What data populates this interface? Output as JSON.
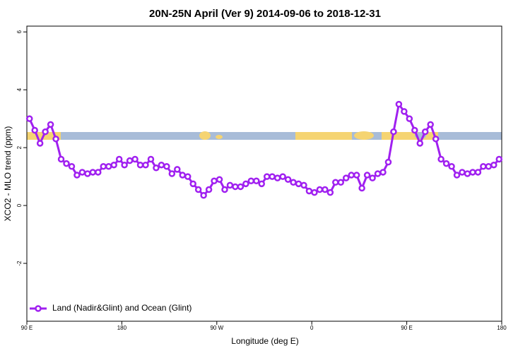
{
  "chart_data": {
    "type": "line",
    "title": "20N-25N April (Ver 9)   2014-09-06 to 2018-12-31",
    "xlabel": "Longitude (deg E)",
    "ylabel": "XCO2 - MLO trend (ppm)",
    "xlim": [
      90,
      540
    ],
    "xticks": [
      {
        "value": 90,
        "label": "90 E"
      },
      180,
      {
        "value": 270,
        "label": "90 W"
      },
      {
        "value": 360,
        "label": "0"
      },
      {
        "value": 450,
        "label": "90 E"
      },
      {
        "value": 540,
        "label": "180"
      }
    ],
    "ylim": [
      -4,
      6.2
    ],
    "yticks": [
      6,
      4,
      2,
      0,
      -2
    ],
    "legend": "bottom-left",
    "x": [
      92.5,
      97.5,
      102.5,
      107.5,
      112.5,
      117.5,
      122.5,
      127.5,
      132.5,
      137.5,
      142.5,
      147.5,
      152.5,
      157.5,
      162.5,
      167.5,
      172.5,
      177.5,
      182.5,
      187.5,
      192.5,
      197.5,
      202.5,
      207.5,
      212.5,
      217.5,
      222.5,
      227.5,
      232.5,
      237.5,
      242.5,
      247.5,
      252.5,
      257.5,
      262.5,
      267.5,
      272.5,
      277.5,
      282.5,
      287.5,
      292.5,
      297.5,
      302.5,
      307.5,
      312.5,
      317.5,
      322.5,
      327.5,
      332.5,
      337.5,
      342.5,
      347.5,
      352.5,
      357.5,
      362.5,
      367.5,
      372.5,
      377.5,
      382.5,
      387.5,
      392.5,
      397.5,
      402.5,
      407.5,
      412.5,
      417.5,
      422.5,
      427.5,
      432.5,
      437.5,
      442.5,
      447.5,
      452.5,
      457.5,
      462.5,
      467.5,
      472.5,
      477.5,
      482.5,
      487.5,
      492.5,
      497.5,
      502.5,
      507.5,
      512.5,
      517.5,
      522.5,
      527.5,
      532.5,
      537.5
    ],
    "series": [
      {
        "name": "Land (Nadir&Glint) and Ocean (Glint)",
        "color": "#a020f0",
        "values": [
          3.0,
          2.6,
          2.15,
          2.55,
          2.8,
          2.3,
          1.6,
          1.45,
          1.35,
          1.05,
          1.15,
          1.1,
          1.15,
          1.15,
          1.35,
          1.35,
          1.4,
          1.6,
          1.4,
          1.55,
          1.6,
          1.4,
          1.4,
          1.6,
          1.3,
          1.4,
          1.35,
          1.1,
          1.25,
          1.05,
          1.0,
          0.75,
          0.55,
          0.35,
          0.55,
          0.85,
          0.9,
          0.55,
          0.7,
          0.65,
          0.65,
          0.75,
          0.85,
          0.85,
          0.75,
          1.0,
          1.0,
          0.95,
          1.0,
          0.9,
          0.8,
          0.75,
          0.7,
          0.5,
          0.45,
          0.55,
          0.55,
          0.45,
          0.8,
          0.8,
          0.95,
          1.05,
          1.05,
          0.6,
          1.05,
          0.95,
          1.1,
          1.15,
          1.5,
          2.55,
          3.5,
          3.25,
          3.0,
          2.6,
          2.15,
          2.55,
          2.8,
          2.3,
          1.6,
          1.45,
          1.35,
          1.05,
          1.15,
          1.1,
          1.15,
          1.15,
          1.35,
          1.35,
          1.4,
          1.6
        ]
      }
    ]
  }
}
